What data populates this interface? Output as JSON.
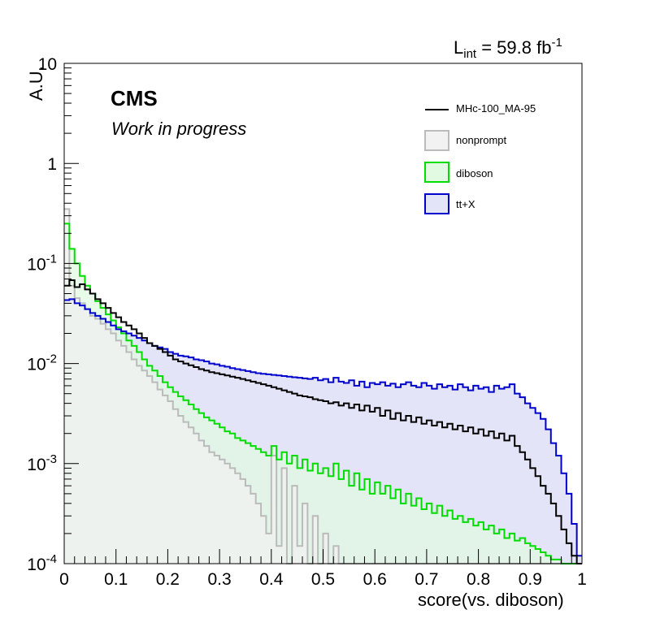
{
  "header": {
    "experiment": "CMS",
    "status": "Work in progress",
    "lumi_prefix": "L",
    "lumi_sub": "int",
    "lumi_value": " = 59.8 fb",
    "lumi_sup": "-1"
  },
  "chart_data": {
    "type": "histogram",
    "title": "",
    "xlabel": "score(vs. diboson)",
    "ylabel": "A.U.",
    "xlim": [
      0,
      1
    ],
    "ylim": [
      0.0001,
      10
    ],
    "yscale": "log",
    "bins": 100,
    "x_ticks": [
      "0",
      "0.1",
      "0.2",
      "0.3",
      "0.4",
      "0.5",
      "0.6",
      "0.7",
      "0.8",
      "0.9",
      "1"
    ],
    "y_ticks": [
      "10",
      "1",
      "10^-1",
      "10^-2",
      "10^-3",
      "10^-4"
    ],
    "legend_position": "top-right",
    "legend": [
      {
        "label": "MHc-100_MA-95",
        "style": "line",
        "color": "#000000"
      },
      {
        "label": "nonprompt",
        "style": "box",
        "color": "#bbbbbb",
        "fill": "#f2f2f2"
      },
      {
        "label": "diboson",
        "style": "box",
        "color": "#00dd00",
        "fill": "#e2f9e2"
      },
      {
        "label": "tt+X",
        "style": "box",
        "color": "#0000cc",
        "fill": "#e4e4f8"
      }
    ],
    "series": [
      {
        "name": "tt+X",
        "color": "#0000cc",
        "fill": "#e4e4f8",
        "values": [
          0.043,
          0.044,
          0.04,
          0.038,
          0.035,
          0.032,
          0.03,
          0.028,
          0.026,
          0.024,
          0.022,
          0.021,
          0.02,
          0.019,
          0.018,
          0.017,
          0.016,
          0.015,
          0.0145,
          0.014,
          0.013,
          0.0125,
          0.012,
          0.0118,
          0.0115,
          0.011,
          0.0108,
          0.0105,
          0.01,
          0.0098,
          0.0095,
          0.0093,
          0.009,
          0.0088,
          0.0086,
          0.0084,
          0.0082,
          0.008,
          0.0079,
          0.0078,
          0.0077,
          0.0076,
          0.0075,
          0.0074,
          0.0073,
          0.0072,
          0.0071,
          0.007,
          0.0072,
          0.0068,
          0.007,
          0.0065,
          0.0072,
          0.0066,
          0.0064,
          0.0068,
          0.006,
          0.0066,
          0.0058,
          0.0064,
          0.0062,
          0.0065,
          0.006,
          0.0063,
          0.0058,
          0.0062,
          0.0065,
          0.006,
          0.0058,
          0.0064,
          0.006,
          0.0056,
          0.0062,
          0.0058,
          0.006,
          0.0055,
          0.0062,
          0.0058,
          0.0054,
          0.006,
          0.0056,
          0.0058,
          0.0052,
          0.006,
          0.0056,
          0.0058,
          0.0062,
          0.005,
          0.0046,
          0.004,
          0.0036,
          0.0032,
          0.0028,
          0.0022,
          0.0016,
          0.0012,
          0.0008,
          0.0005,
          0.00025,
          0.00012
        ]
      },
      {
        "name": "diboson",
        "color": "#00dd00",
        "fill": "#e2f9e2",
        "values": [
          0.25,
          0.14,
          0.1,
          0.075,
          0.06,
          0.05,
          0.042,
          0.036,
          0.031,
          0.027,
          0.023,
          0.02,
          0.017,
          0.015,
          0.013,
          0.011,
          0.0095,
          0.0085,
          0.0075,
          0.0065,
          0.0058,
          0.0052,
          0.0047,
          0.0043,
          0.0039,
          0.0035,
          0.0032,
          0.0029,
          0.0027,
          0.0025,
          0.0023,
          0.0021,
          0.002,
          0.0018,
          0.0017,
          0.0016,
          0.0015,
          0.0014,
          0.0013,
          0.0012,
          0.0015,
          0.0011,
          0.0013,
          0.001,
          0.0012,
          0.0009,
          0.0011,
          0.00085,
          0.001,
          0.0008,
          0.0009,
          0.00075,
          0.001,
          0.0007,
          0.00085,
          0.0006,
          0.0008,
          0.00055,
          0.0007,
          0.0005,
          0.00065,
          0.0005,
          0.0006,
          0.00045,
          0.00055,
          0.0004,
          0.0005,
          0.00038,
          0.00045,
          0.00035,
          0.0004,
          0.00032,
          0.00038,
          0.0003,
          0.00034,
          0.00028,
          0.0003,
          0.00026,
          0.00028,
          0.00024,
          0.00026,
          0.00022,
          0.00024,
          0.0002,
          0.00022,
          0.00018,
          0.0002,
          0.00017,
          0.00018,
          0.00016,
          0.00015,
          0.00014,
          0.00013,
          0.00012,
          0.00011,
          0.00011,
          0.0001,
          0.0001,
          0.0001,
          0.0001
        ]
      },
      {
        "name": "nonprompt",
        "color": "#bbbbbb",
        "fill": "#f2f2f2",
        "values": [
          0.35,
          0.06,
          0.045,
          0.04,
          0.035,
          0.03,
          0.028,
          0.025,
          0.022,
          0.02,
          0.017,
          0.015,
          0.013,
          0.011,
          0.0095,
          0.0085,
          0.0075,
          0.0065,
          0.0055,
          0.0048,
          0.0042,
          0.0035,
          0.003,
          0.0026,
          0.0023,
          0.002,
          0.0017,
          0.0015,
          0.0013,
          0.0012,
          0.0011,
          0.001,
          0.0009,
          0.0008,
          0.0007,
          0.0006,
          0.0005,
          0.0004,
          0.0003,
          0.0002,
          0.0012,
          0.00015,
          0.0009,
          0.0001,
          0.0006,
          0.00015,
          0.0004,
          0.0001,
          0.0003,
          0.0001,
          0.0002,
          0.0001,
          0.00015,
          0.0001,
          0.0001,
          0.0001,
          0.0001,
          0.0001,
          0.0001,
          0.0001,
          0.0001,
          0.0001,
          0.0001,
          0.0001,
          0.0001,
          0.0001,
          0.0001,
          0.0001,
          0.0001,
          0.0001,
          0.0001,
          0.0001,
          0.0001,
          0.0001,
          0.0001,
          0.0001,
          0.0001,
          0.0001,
          0.0001,
          0.0001,
          0.0001,
          0.0001,
          0.0001,
          0.0001,
          0.0001,
          0.0001,
          0.0001,
          0.0001,
          0.0001,
          0.0001,
          0.0001,
          0.0001,
          0.0001,
          0.0001,
          0.0001,
          0.0001,
          0.0001,
          0.0001,
          0.0001,
          0.0001
        ]
      },
      {
        "name": "MHc-100_MA-95",
        "color": "#000000",
        "fill": "none",
        "values": [
          0.06,
          0.068,
          0.058,
          0.062,
          0.055,
          0.05,
          0.044,
          0.04,
          0.036,
          0.032,
          0.029,
          0.026,
          0.024,
          0.022,
          0.02,
          0.018,
          0.016,
          0.015,
          0.014,
          0.013,
          0.012,
          0.011,
          0.0105,
          0.01,
          0.0096,
          0.0092,
          0.0088,
          0.0085,
          0.0082,
          0.008,
          0.0078,
          0.0076,
          0.0074,
          0.0072,
          0.007,
          0.0068,
          0.0066,
          0.0064,
          0.0062,
          0.006,
          0.0058,
          0.0056,
          0.0054,
          0.0052,
          0.005,
          0.0048,
          0.0047,
          0.0046,
          0.0044,
          0.0043,
          0.0042,
          0.004,
          0.0041,
          0.0038,
          0.004,
          0.0036,
          0.0039,
          0.0034,
          0.0038,
          0.0033,
          0.0036,
          0.003,
          0.0034,
          0.0028,
          0.0032,
          0.0027,
          0.003,
          0.0026,
          0.0029,
          0.0025,
          0.0027,
          0.0024,
          0.0026,
          0.0023,
          0.0025,
          0.0022,
          0.0024,
          0.0021,
          0.0023,
          0.002,
          0.0022,
          0.0019,
          0.0021,
          0.0018,
          0.002,
          0.0017,
          0.0019,
          0.0015,
          0.0013,
          0.0011,
          0.0009,
          0.00075,
          0.0006,
          0.0005,
          0.0004,
          0.0003,
          0.00022,
          0.00016,
          0.00012,
          0.0001
        ]
      }
    ]
  }
}
